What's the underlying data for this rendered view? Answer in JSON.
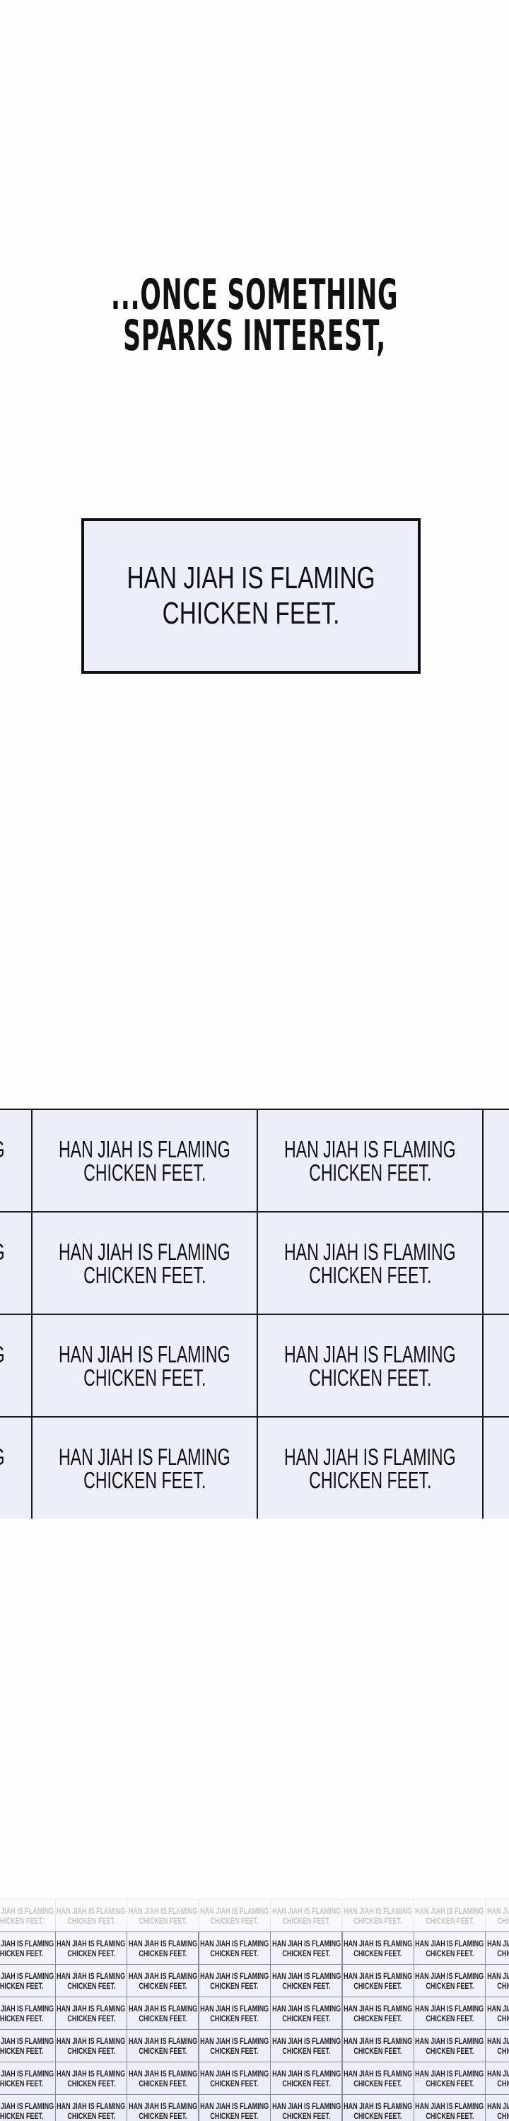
{
  "caption": {
    "line1": "...ONCE SOMETHING",
    "line2": "SPARKS INTEREST,"
  },
  "box": {
    "line1": "HAN JIAH IS FLAMING",
    "line2": "CHICKEN FEET."
  },
  "tile": {
    "line1": "HAN JIAH IS FLAMING",
    "line2": "CHICKEN FEET."
  },
  "colors": {
    "panel_fill": "#eceefa",
    "border": "#111111",
    "background": "#fdfdfd"
  }
}
